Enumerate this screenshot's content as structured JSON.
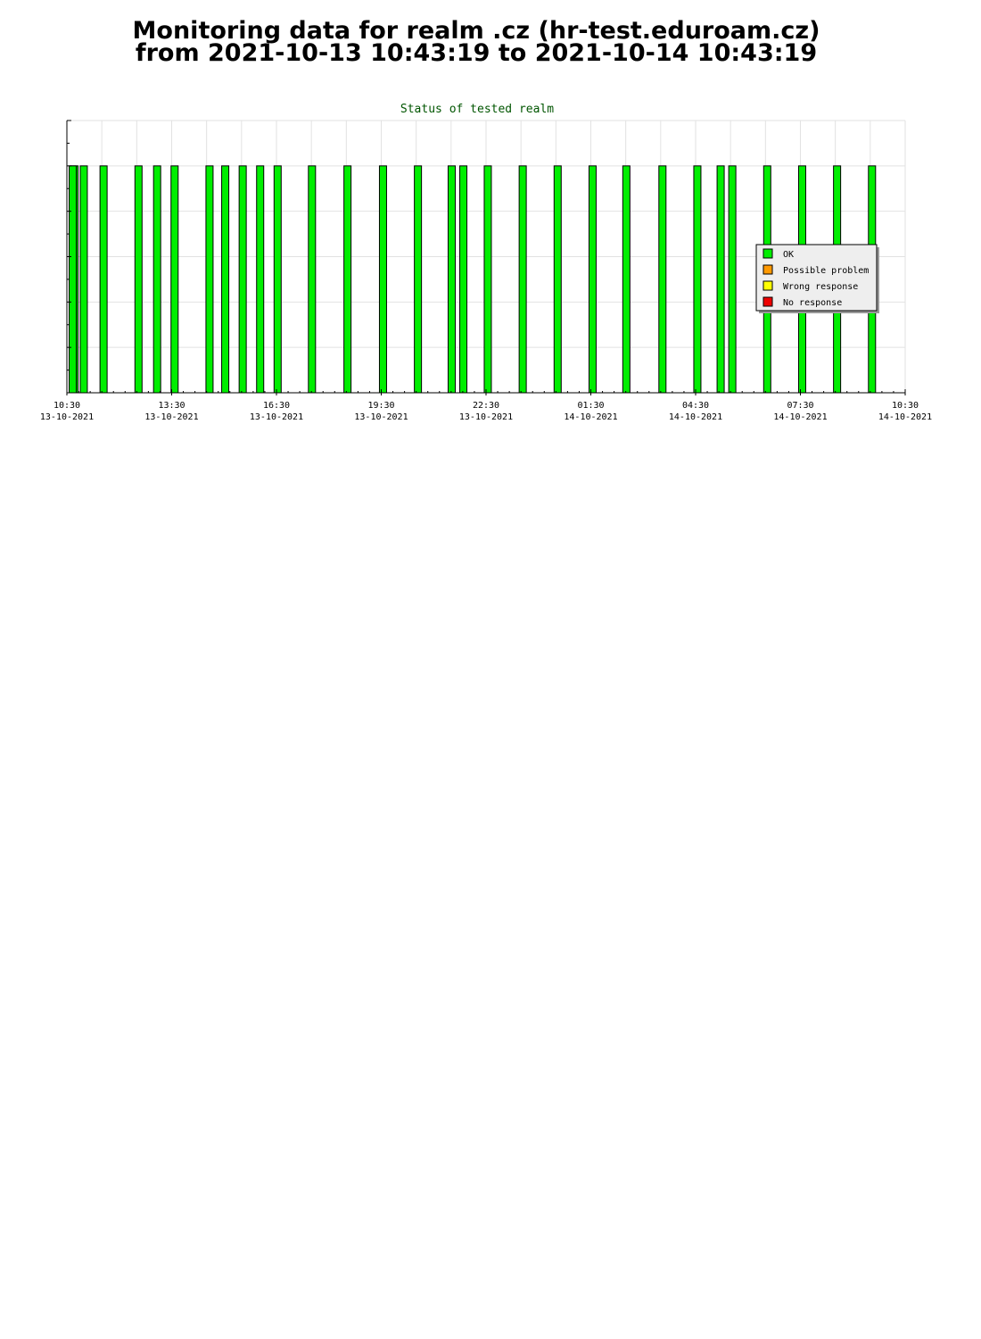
{
  "page": {
    "title_line1": "Monitoring data for realm .cz  (hr-test.eduroam.cz)",
    "title_line2": "from 2021-10-13  10:43:19 to 2021-10-14  10:43:19"
  },
  "chart_data": {
    "type": "bar",
    "title": "Status of tested realm",
    "xlabel": "",
    "ylabel": "",
    "ylim": [
      0,
      6
    ],
    "grid": true,
    "legend_position": "right",
    "x_ticks": [
      {
        "time": "10:30",
        "date": "13-10-2021"
      },
      {
        "time": "13:30",
        "date": "13-10-2021"
      },
      {
        "time": "16:30",
        "date": "13-10-2021"
      },
      {
        "time": "19:30",
        "date": "13-10-2021"
      },
      {
        "time": "22:30",
        "date": "13-10-2021"
      },
      {
        "time": "01:30",
        "date": "14-10-2021"
      },
      {
        "time": "04:30",
        "date": "14-10-2021"
      },
      {
        "time": "07:30",
        "date": "14-10-2021"
      },
      {
        "time": "10:30",
        "date": "14-10-2021"
      }
    ],
    "legend": [
      {
        "name": "OK",
        "color": "#00ee00"
      },
      {
        "name": "Possible problem",
        "color": "#ff9900"
      },
      {
        "name": "Wrong response",
        "color": "#ffff00"
      },
      {
        "name": "No response",
        "color": "#ee0000"
      }
    ],
    "series": [
      {
        "name": "OK",
        "color": "#00ee00",
        "value": 5,
        "times": [
          "10:43",
          "10:59",
          "11:33",
          "12:33",
          "13:05",
          "13:35",
          "14:35",
          "15:02",
          "15:32",
          "16:02",
          "16:32",
          "17:31",
          "18:32",
          "19:33",
          "20:33",
          "21:31",
          "21:51",
          "22:33",
          "23:33",
          "00:33",
          "01:33",
          "02:31",
          "03:33",
          "04:33",
          "05:13",
          "05:33",
          "06:33",
          "07:33",
          "08:33",
          "09:33",
          "10:40"
        ]
      }
    ]
  }
}
